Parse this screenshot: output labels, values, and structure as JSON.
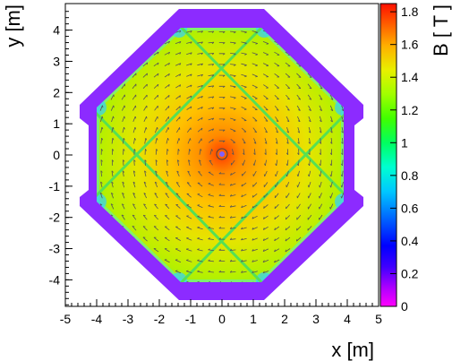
{
  "chart_data": {
    "type": "heatmap",
    "title": "",
    "xlabel": "x [m]",
    "ylabel": "y [m]",
    "colorbar_label": "B [ T ]",
    "xlim": [
      -5,
      5
    ],
    "ylim": [
      -4.85,
      4.85
    ],
    "xticks": [
      -5,
      -4,
      -3,
      -2,
      -1,
      0,
      1,
      2,
      3,
      4,
      5
    ],
    "yticks": [
      -4,
      -3,
      -2,
      -1,
      0,
      1,
      2,
      3,
      4
    ],
    "colorbar_range": [
      0,
      1.85
    ],
    "colorbar_ticks": [
      "0",
      "0.2",
      "0.4",
      "0.6",
      "0.8",
      "1",
      "1.2",
      "1.4",
      "1.6",
      "1.8"
    ],
    "colorbar_tick_values": [
      0,
      0.2,
      0.4,
      0.6,
      0.8,
      1,
      1.2,
      1.4,
      1.6,
      1.8
    ],
    "grid": false,
    "field_direction": "circulating, clockwise arrows around the center",
    "features": {
      "return_yoke_field": 0.05,
      "center_peak": 1.85,
      "center_inner_field": 1.6,
      "outer_corner_field": 0.75,
      "diagonal_line_field": 1.2
    },
    "colors": {
      "yoke": "#8c2bff",
      "colormap": [
        "#ff00ff",
        "#8000ff",
        "#0000ff",
        "#00a0ff",
        "#00ffe0",
        "#00ff60",
        "#80ff00",
        "#d0ff00",
        "#ffd000",
        "#ff8000",
        "#ff2000"
      ]
    }
  }
}
